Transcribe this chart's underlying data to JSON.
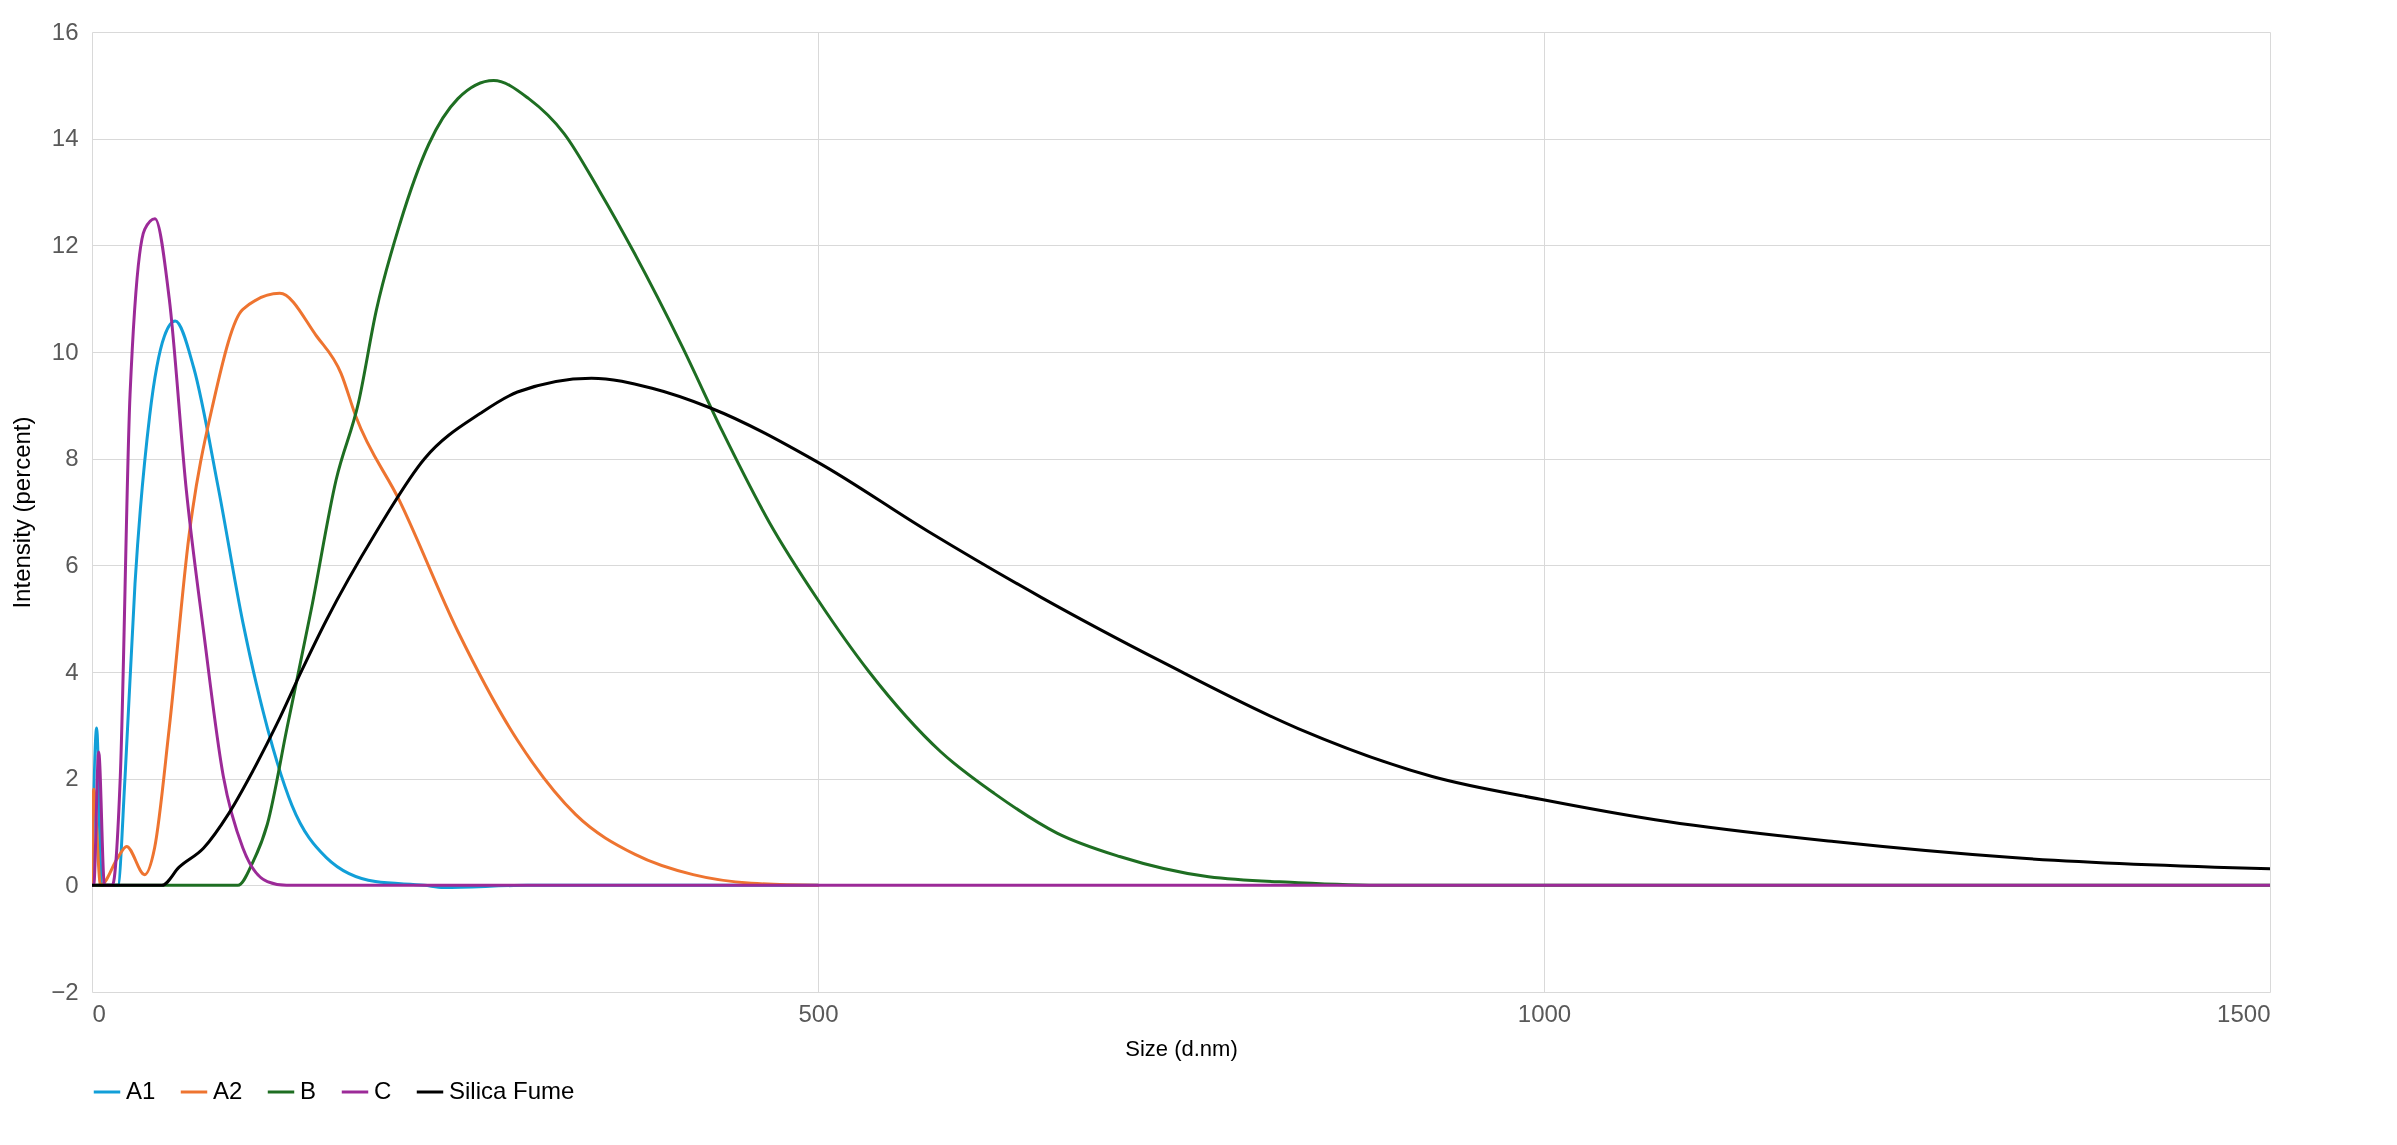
{
  "chart_data": {
    "type": "line",
    "xlabel": "Size (d.nm)",
    "ylabel": "Intensity (percent)",
    "xlim": [
      0,
      1500
    ],
    "xticks": [
      0,
      500,
      1000,
      1500
    ],
    "ylim": [
      -2,
      16
    ],
    "yticks": [
      -2,
      0,
      2,
      4,
      6,
      8,
      10,
      12,
      14,
      16
    ],
    "grid": true,
    "legend": "bottom",
    "marker": "none",
    "line_style": "solid",
    "series": [
      {
        "name": "A1",
        "color": "#119fd8",
        "x": [
          0,
          3.2,
          6.6,
          17.8,
          22.8,
          29.6,
          39.7,
          49.9,
          57.3,
          70.1,
          87,
          103.9,
          120.8,
          137.7,
          161.4,
          195.2,
          229,
          242,
          300,
          500
        ],
        "values": [
          0,
          2.95,
          0,
          0,
          2.05,
          5.65,
          8.8,
          10.3,
          10.58,
          9.7,
          7.45,
          4.93,
          2.95,
          1.5,
          0.52,
          0.07,
          0,
          -0.04,
          0,
          0
        ]
      },
      {
        "name": "A2",
        "color": "#ee7430",
        "x": [
          0,
          1.2,
          5.9,
          17.8,
          23.8,
          36.3,
          43.1,
          53.2,
          66.8,
          83.7,
          103.9,
          129.3,
          154.6,
          171.5,
          181.6,
          212,
          252,
          293,
          333,
          374,
          414,
          454,
          500
        ],
        "values": [
          0,
          1.8,
          0,
          0.52,
          0.73,
          0.2,
          0.7,
          2.95,
          6.55,
          9.07,
          10.8,
          11.1,
          10.3,
          9.6,
          8.8,
          7.2,
          4.76,
          2.72,
          1.33,
          0.58,
          0.2,
          0.04,
          0
        ]
      },
      {
        "name": "B",
        "color": "#1e6e22",
        "x": [
          0,
          100.5,
          110.7,
          120.8,
          134.3,
          151.2,
          168.1,
          183.6,
          195.8,
          212,
          232,
          252,
          276.6,
          300.8,
          325,
          349.3,
          373.6,
          406,
          434,
          466.6,
          500,
          535,
          584.7,
          621.6,
          664.6,
          707.7,
          769,
          830.7,
          892,
          1000,
          1500
        ],
        "values": [
          0,
          0,
          0.43,
          1.15,
          2.95,
          5.2,
          7.6,
          9.06,
          10.78,
          12.4,
          13.9,
          14.75,
          15.09,
          14.75,
          14.1,
          13.03,
          11.85,
          10.13,
          8.52,
          6.8,
          5.35,
          4.01,
          2.5,
          1.72,
          0.98,
          0.54,
          0.16,
          0.05,
          0,
          0,
          0
        ]
      },
      {
        "name": "C",
        "color": "#9c2a98",
        "x": [
          0,
          1.2,
          4.6,
          8.6,
          14,
          19.5,
          26.2,
          36.3,
          43.4,
          53.2,
          65,
          76.9,
          90.4,
          103.9,
          120.8,
          134,
          500,
          1000,
          1500
        ],
        "values": [
          0,
          0,
          2.5,
          0,
          0,
          2.05,
          9.2,
          12.3,
          12.5,
          11,
          7.4,
          4.75,
          2.05,
          0.7,
          0.07,
          0,
          0,
          0,
          0
        ]
      },
      {
        "name": "Silica Fume",
        "color": "#000000",
        "x": [
          0,
          48.2,
          60,
          76.9,
          93.8,
          110.7,
          127.6,
          144.5,
          161.4,
          195.2,
          229,
          267.5,
          293,
          344,
          385.7,
          426,
          500,
          575.7,
          653.7,
          738.4,
          830.7,
          923,
          1000.4,
          1076.6,
          1199.6,
          1322.6,
          1500
        ],
        "values": [
          0,
          0,
          0.34,
          0.7,
          1.33,
          2.14,
          3.04,
          4.03,
          4.97,
          6.6,
          8.0,
          8.85,
          9.25,
          9.51,
          9.32,
          8.95,
          7.93,
          6.64,
          5.4,
          4.17,
          2.94,
          2.04,
          1.6,
          1.23,
          0.82,
          0.52,
          0.31
        ]
      }
    ]
  }
}
